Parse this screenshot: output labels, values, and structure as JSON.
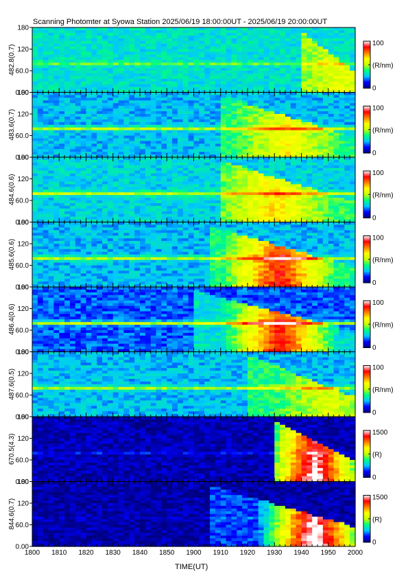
{
  "title": "Scanning Photomter at Syowa Station 2025/06/19 18:00:00UT - 2025/06/19 20:00:00UT",
  "xlabel": "TIME(UT)",
  "chart_data": {
    "type": "heatmap",
    "title": "Scanning Photomter at Syowa Station 2025/06/19 18:00:00UT - 2025/06/19 20:00:00UT",
    "xlabel": "TIME(UT)",
    "x_ticks": [
      "1800",
      "1810",
      "1820",
      "1830",
      "1840",
      "1850",
      "1900",
      "1910",
      "1920",
      "1930",
      "1940",
      "1950",
      "2000"
    ],
    "y_ticks": [
      "0.00",
      "60.0",
      "120",
      "180"
    ],
    "ylim": [
      0,
      180
    ],
    "colormap": [
      "#00007f",
      "#0000ff",
      "#00c8ff",
      "#00ff7f",
      "#c8ff00",
      "#ffff00",
      "#ff7f00",
      "#ff0000",
      "#ffffff"
    ],
    "panels": [
      {
        "label": "482.8(0.7)",
        "unit": "(R/nm)",
        "cmin": "0",
        "cmax": "100",
        "activity_start": 1940,
        "band_level": 0.22,
        "bg_level": 0.3,
        "peak_time": 1955,
        "peak_level": 0.45
      },
      {
        "label": "483.6(0.7)",
        "unit": "(R/nm)",
        "cmin": "0",
        "cmax": "100",
        "activity_start": 1910,
        "band_level": 0.42,
        "bg_level": 0.25,
        "peak_time": 1935,
        "peak_level": 0.5
      },
      {
        "label": "484.6(0.6)",
        "unit": "(R/nm)",
        "cmin": "0",
        "cmax": "100",
        "activity_start": 1910,
        "band_level": 0.4,
        "bg_level": 0.28,
        "peak_time": 1930,
        "peak_level": 0.55
      },
      {
        "label": "485.6(0.6)",
        "unit": "(R/nm)",
        "cmin": "0",
        "cmax": "100",
        "activity_start": 1905,
        "band_level": 0.42,
        "bg_level": 0.25,
        "peak_time": 1932,
        "peak_level": 0.78
      },
      {
        "label": "486.4(0.6)",
        "unit": "(R/nm)",
        "cmin": "0",
        "cmax": "100",
        "activity_start": 1900,
        "band_level": 0.55,
        "bg_level": 0.18,
        "peak_time": 1932,
        "peak_level": 0.8
      },
      {
        "label": "487.6(0.5)",
        "unit": "(R/nm)",
        "cmin": "0",
        "cmax": "100",
        "activity_start": 1920,
        "band_level": 0.4,
        "bg_level": 0.25,
        "peak_time": 1950,
        "peak_level": 0.45
      },
      {
        "label": "670.5(4.3)",
        "unit": "(R)",
        "cmin": "0",
        "cmax": "1500",
        "activity_start": 1930,
        "band_level": 0.12,
        "bg_level": 0.05,
        "peak_time": 1945,
        "peak_level": 0.95
      },
      {
        "label": "844.6(0.7)",
        "unit": "(R)",
        "cmin": "0",
        "cmax": "1500",
        "activity_start": 1905,
        "band_level": 0.05,
        "bg_level": 0.04,
        "peak_time": 1945,
        "peak_level": 1.0
      }
    ]
  }
}
